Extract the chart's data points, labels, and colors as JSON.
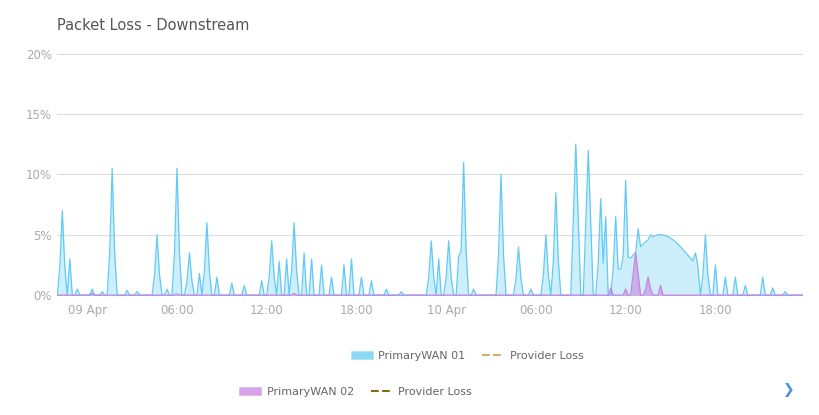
{
  "title": "Packet Loss - Downstream",
  "title_color": "#555555",
  "background_color": "#ffffff",
  "plot_bg_color": "#ffffff",
  "yticks": [
    0,
    5,
    10,
    15,
    20
  ],
  "ytick_labels": [
    "0%",
    "5%",
    "10%",
    "15%",
    "20%"
  ],
  "ylim": [
    -0.3,
    21
  ],
  "xtick_labels": [
    "09 Apr",
    "06:00",
    "12:00",
    "18:00",
    "10 Apr",
    "06:00",
    "12:00",
    "18:00"
  ],
  "grid_color": "#dedede",
  "wan01_color": "#5bc8f5",
  "wan02_color": "#c77ddf",
  "legend_row1_label1": "PrimaryWAN 01",
  "legend_row1_label2": "Provider Loss",
  "legend_row2_label1": "PrimaryWAN 02",
  "legend_row2_label2": "Provider Loss",
  "legend_text_color": "#666666",
  "provider_loss_color1": "#d4aa70",
  "provider_loss_color2": "#8B6914"
}
